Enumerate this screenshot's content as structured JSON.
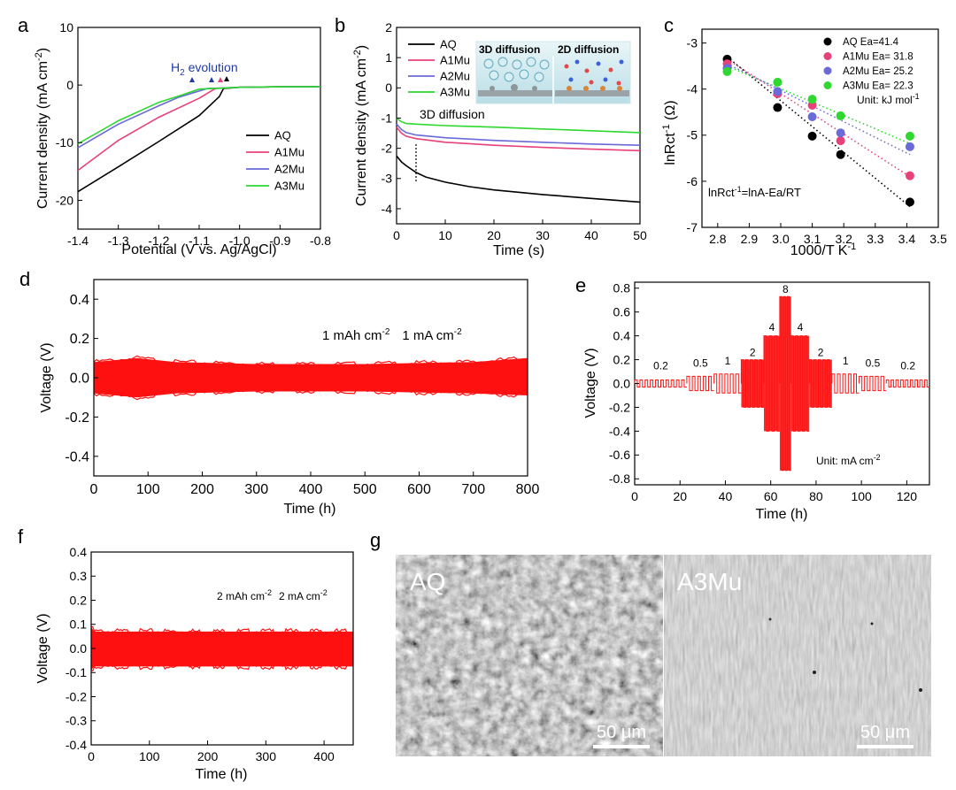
{
  "colors": {
    "AQ": "#000000",
    "A1Mu": "#e8407a",
    "A2Mu": "#6a6ad8",
    "A3Mu": "#2ed82e",
    "voltage": "#ff1010",
    "h2_label": "#1f3aa8",
    "diffusion_label": "#1aa37a",
    "diff3d": "#e07a30",
    "diff2d": "#9a3cbf"
  },
  "chart_data": [
    {
      "id": "a",
      "panel_label": "a",
      "type": "line",
      "xlabel": "Potential (V vs. Ag/AgCl)",
      "ylabel": "Current density (mA cm",
      "ylabel_sup": "-2",
      "ylabel_end": ")",
      "xlim": [
        -1.4,
        -0.8
      ],
      "ylim": [
        -25,
        10
      ],
      "xticks": [
        "-1.4",
        "-1.3",
        "-1.2",
        "-1.1",
        "-1.0",
        "-0.9",
        "-0.8"
      ],
      "xtick_values": [
        -1.4,
        -1.3,
        -1.2,
        -1.1,
        -1.0,
        -0.9,
        -0.8
      ],
      "yticks": [
        "10",
        "0",
        "-10",
        "-20"
      ],
      "ytick_values": [
        10,
        0,
        -10,
        -20
      ],
      "annotation": {
        "pre": "H",
        "sub": "2",
        "post": " evolution"
      },
      "series": [
        {
          "name": "AQ",
          "x": [
            -1.4,
            -1.3,
            -1.2,
            -1.1,
            -1.05,
            -1.04,
            -1.0,
            -0.9,
            -0.8
          ],
          "y": [
            -18.5,
            -14.2,
            -9.8,
            -5.3,
            -2.0,
            -0.6,
            -0.4,
            -0.3,
            -0.3
          ]
        },
        {
          "name": "A1Mu",
          "x": [
            -1.4,
            -1.3,
            -1.2,
            -1.1,
            -1.06,
            -1.0,
            -0.9,
            -0.8
          ],
          "y": [
            -14.8,
            -9.6,
            -5.6,
            -2.3,
            -0.6,
            -0.4,
            -0.3,
            -0.3
          ]
        },
        {
          "name": "A2Mu",
          "x": [
            -1.4,
            -1.3,
            -1.2,
            -1.15,
            -1.08,
            -1.0,
            -0.9,
            -0.8
          ],
          "y": [
            -10.9,
            -6.8,
            -3.6,
            -2.1,
            -0.6,
            -0.4,
            -0.3,
            -0.3
          ]
        },
        {
          "name": "A3Mu",
          "x": [
            -1.4,
            -1.3,
            -1.2,
            -1.15,
            -1.1,
            -1.0,
            -0.9,
            -0.8
          ],
          "y": [
            -10.2,
            -6.2,
            -3.0,
            -1.9,
            -0.7,
            -0.4,
            -0.3,
            -0.3
          ]
        }
      ]
    },
    {
      "id": "b",
      "panel_label": "b",
      "type": "line",
      "xlabel": "Time (s)",
      "ylabel": "Current density (mA cm",
      "ylabel_sup": "-2",
      "ylabel_end": ")",
      "xlim": [
        0,
        50
      ],
      "ylim": [
        -4.5,
        2
      ],
      "xticks": [
        "0",
        "10",
        "20",
        "30",
        "40",
        "50"
      ],
      "xtick_values": [
        0,
        10,
        20,
        30,
        40,
        50
      ],
      "yticks": [
        "2",
        "1",
        "0",
        "-1",
        "-2",
        "-3",
        "-4"
      ],
      "ytick_values": [
        2,
        1,
        0,
        -1,
        -2,
        -3,
        -4
      ],
      "annotation": "3D diffusion",
      "inset_labels": [
        "3D diffusion",
        "2D diffusion"
      ],
      "series": [
        {
          "name": "AQ",
          "x": [
            0,
            1,
            2,
            4,
            6,
            10,
            15,
            20,
            30,
            40,
            50
          ],
          "y": [
            -2.25,
            -2.45,
            -2.58,
            -2.8,
            -2.95,
            -3.12,
            -3.27,
            -3.38,
            -3.53,
            -3.66,
            -3.78
          ]
        },
        {
          "name": "A1Mu",
          "x": [
            0,
            1,
            2,
            4,
            10,
            20,
            30,
            40,
            50
          ],
          "y": [
            -1.3,
            -1.5,
            -1.6,
            -1.68,
            -1.8,
            -1.9,
            -1.97,
            -2.03,
            -2.08
          ]
        },
        {
          "name": "A2Mu",
          "x": [
            0,
            1,
            2,
            4,
            10,
            20,
            30,
            40,
            50
          ],
          "y": [
            -1.2,
            -1.38,
            -1.48,
            -1.56,
            -1.65,
            -1.74,
            -1.8,
            -1.86,
            -1.9
          ]
        },
        {
          "name": "A3Mu",
          "x": [
            0,
            1,
            2,
            4,
            10,
            20,
            30,
            40,
            50
          ],
          "y": [
            -1.0,
            -1.12,
            -1.18,
            -1.2,
            -1.25,
            -1.3,
            -1.36,
            -1.42,
            -1.48
          ]
        }
      ]
    },
    {
      "id": "c",
      "panel_label": "c",
      "type": "scatter",
      "xlabel": "1000/T K",
      "xlabel_sup": "-1",
      "ylabel": "lnRct",
      "ylabel_sup": "-1",
      "ylabel_end": " (Ω)",
      "xlim": [
        2.75,
        3.5
      ],
      "ylim": [
        -7,
        -2.7
      ],
      "xticks": [
        "2.8",
        "2.9",
        "3.0",
        "3.1",
        "3.2",
        "3.3",
        "3.4",
        "3.5"
      ],
      "xtick_values": [
        2.8,
        2.9,
        3.0,
        3.1,
        3.2,
        3.3,
        3.4,
        3.5
      ],
      "yticks": [
        "-3",
        "-4",
        "-5",
        "-6",
        "-7"
      ],
      "ytick_values": [
        -3,
        -4,
        -5,
        -6,
        -7
      ],
      "equation": {
        "pre": "lnRct",
        "sup": "-1",
        "post": "=lnA-Ea/RT"
      },
      "unit_note": {
        "pre": "Unit: kJ mol",
        "sup": "-1"
      },
      "series": [
        {
          "name": "AQ",
          "legend": "AQ Ea=41.4",
          "x": [
            2.83,
            2.99,
            3.1,
            3.19,
            3.41
          ],
          "y": [
            -3.35,
            -4.4,
            -5.02,
            -5.42,
            -6.45
          ],
          "fit": [
            [
              2.83,
              -3.3
            ],
            [
              3.41,
              -6.55
            ]
          ]
        },
        {
          "name": "A1Mu",
          "legend": "A1Mu Ea= 31.8",
          "x": [
            2.83,
            2.99,
            3.1,
            3.19,
            3.41
          ],
          "y": [
            -3.45,
            -4.1,
            -4.35,
            -5.12,
            -5.88
          ],
          "fit": [
            [
              2.83,
              -3.35
            ],
            [
              3.41,
              -5.9
            ]
          ]
        },
        {
          "name": "A2Mu",
          "legend": "A2Mu Ea= 25.2",
          "x": [
            2.83,
            2.99,
            3.1,
            3.19,
            3.41
          ],
          "y": [
            -3.55,
            -4.05,
            -4.6,
            -4.95,
            -5.25
          ],
          "fit": [
            [
              2.83,
              -3.45
            ],
            [
              3.41,
              -5.42
            ]
          ]
        },
        {
          "name": "A3Mu",
          "legend": "A3Mu Ea= 22.3",
          "x": [
            2.83,
            2.99,
            3.1,
            3.19,
            3.41
          ],
          "y": [
            -3.62,
            -3.85,
            -4.22,
            -4.58,
            -5.02
          ],
          "fit": [
            [
              2.83,
              -3.5
            ],
            [
              3.41,
              -5.18
            ]
          ]
        }
      ]
    },
    {
      "id": "d",
      "panel_label": "d",
      "type": "area",
      "xlabel": "Time (h)",
      "ylabel": "Voltage (V)",
      "xlim": [
        0,
        800
      ],
      "ylim": [
        -0.5,
        0.5
      ],
      "xticks": [
        "0",
        "100",
        "200",
        "300",
        "400",
        "500",
        "600",
        "700",
        "800"
      ],
      "xtick_values": [
        0,
        100,
        200,
        300,
        400,
        500,
        600,
        700,
        800
      ],
      "yticks": [
        "0.4",
        "0.2",
        "0.0",
        "-0.2",
        "-0.4"
      ],
      "ytick_values": [
        0.4,
        0.2,
        0.0,
        -0.2,
        -0.4
      ],
      "condition": {
        "cap": "1 mAh cm",
        "cap_sup": "-2",
        "cur": "1 mA cm",
        "cur_sup": "-2"
      },
      "envelope": {
        "x": [
          0,
          80,
          150,
          300,
          500,
          700,
          800
        ],
        "upper": [
          0.08,
          0.1,
          0.08,
          0.07,
          0.07,
          0.08,
          0.1
        ],
        "lower": [
          -0.08,
          -0.1,
          -0.08,
          -0.07,
          -0.07,
          -0.08,
          -0.09
        ]
      }
    },
    {
      "id": "e",
      "panel_label": "e",
      "type": "line",
      "xlabel": "Time (h)",
      "ylabel": "Voltage (V)",
      "xlim": [
        0,
        130
      ],
      "ylim": [
        -0.85,
        0.85
      ],
      "xticks": [
        "0",
        "20",
        "40",
        "60",
        "80",
        "100",
        "120"
      ],
      "xtick_values": [
        0,
        20,
        40,
        60,
        80,
        100,
        120
      ],
      "yticks": [
        "0.8",
        "0.6",
        "0.4",
        "0.2",
        "0.0",
        "-0.2",
        "-0.4",
        "-0.6",
        "-0.8"
      ],
      "ytick_values": [
        0.8,
        0.6,
        0.4,
        0.2,
        0.0,
        -0.2,
        -0.4,
        -0.6,
        -0.8
      ],
      "unit_note": {
        "pre": "Unit: mA cm",
        "sup": "-2"
      },
      "segments": [
        {
          "rate": "0.2",
          "start": 0,
          "end": 23,
          "amp": 0.03,
          "label_y": 0.12
        },
        {
          "rate": "0.5",
          "start": 23,
          "end": 35,
          "amp": 0.06,
          "label_y": 0.14
        },
        {
          "rate": "1",
          "start": 35,
          "end": 47,
          "amp": 0.08,
          "label_y": 0.16
        },
        {
          "rate": "2",
          "start": 47,
          "end": 57,
          "amp": 0.2,
          "label_y": 0.23
        },
        {
          "rate": "4",
          "start": 57,
          "end": 64,
          "amp": 0.4,
          "label_y": 0.44
        },
        {
          "rate": "8",
          "start": 64,
          "end": 69,
          "amp": 0.73,
          "label_y": 0.76
        },
        {
          "rate": "4",
          "start": 69,
          "end": 77,
          "amp": 0.4,
          "label_y": 0.44
        },
        {
          "rate": "2",
          "start": 77,
          "end": 87,
          "amp": 0.2,
          "label_y": 0.23
        },
        {
          "rate": "1",
          "start": 87,
          "end": 99,
          "amp": 0.08,
          "label_y": 0.16
        },
        {
          "rate": "0.5",
          "start": 99,
          "end": 111,
          "amp": 0.06,
          "label_y": 0.14
        },
        {
          "rate": "0.2",
          "start": 111,
          "end": 130,
          "amp": 0.03,
          "label_y": 0.12
        }
      ]
    },
    {
      "id": "f",
      "panel_label": "f",
      "type": "area",
      "xlabel": "Time (h)",
      "ylabel": "Voltage (V)",
      "xlim": [
        0,
        450
      ],
      "ylim": [
        -0.4,
        0.4
      ],
      "xticks": [
        "0",
        "100",
        "200",
        "300",
        "400"
      ],
      "xtick_values": [
        0,
        100,
        200,
        300,
        400
      ],
      "yticks": [
        "0.4",
        "0.3",
        "0.2",
        "0.1",
        "0.0",
        "-0.1",
        "-0.2",
        "-0.3",
        "-0.4"
      ],
      "ytick_values": [
        0.4,
        0.3,
        0.2,
        0.1,
        0.0,
        -0.1,
        -0.2,
        -0.3,
        -0.4
      ],
      "condition": {
        "cap": "2 mAh cm",
        "cap_sup": "-2",
        "cur": "2 mA cm",
        "cur_sup": "-2"
      },
      "envelope": {
        "x": [
          0,
          5,
          50,
          200,
          400,
          450
        ],
        "upper": [
          0.09,
          0.07,
          0.07,
          0.07,
          0.07,
          0.07
        ],
        "lower": [
          -0.09,
          -0.075,
          -0.075,
          -0.075,
          -0.075,
          -0.075
        ]
      }
    }
  ],
  "micrographs": {
    "panel_label": "g",
    "left": {
      "label": "AQ",
      "scale": "50 μm"
    },
    "right": {
      "label": "A3Mu",
      "scale": "50 μm"
    }
  }
}
